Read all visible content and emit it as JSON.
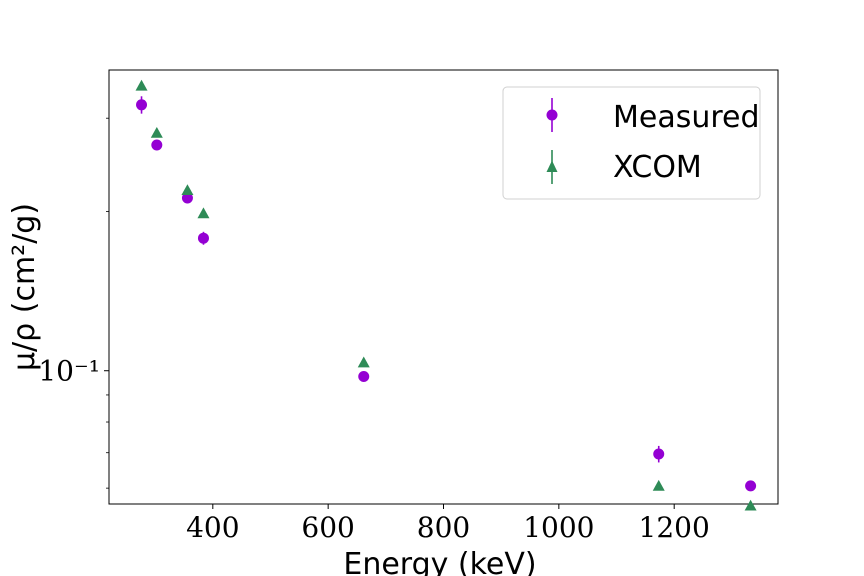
{
  "chart_data": {
    "type": "scatter",
    "title": "",
    "xlabel": "Energy (keV)",
    "ylabel": "μ/ρ (cm²/g)",
    "y_scale": "log",
    "xlim": [
      220,
      1380
    ],
    "ylim": [
      0.056,
      0.37
    ],
    "x_ticks": [
      400,
      600,
      800,
      1000,
      1200
    ],
    "y_major_ticks": [
      {
        "value": 0.1,
        "label": "10⁻¹"
      }
    ],
    "grid": false,
    "legend": "top-right",
    "series": [
      {
        "name": "Measured",
        "marker": "circle",
        "color": "#9400d3",
        "x": [
          276.4,
          302.9,
          356.0,
          383.8,
          661.7,
          1173.2,
          1332.5
        ],
        "y": [
          0.318,
          0.267,
          0.212,
          0.178,
          0.0975,
          0.0696,
          0.0606
        ],
        "yerr": [
          0.012,
          0.006,
          0.005,
          0.005,
          0.0015,
          0.0025,
          0.001
        ]
      },
      {
        "name": "XCOM",
        "marker": "triangle",
        "color": "#2e8b57",
        "x": [
          276.4,
          302.9,
          356.0,
          383.8,
          661.7,
          1173.2,
          1332.5
        ],
        "y": [
          0.345,
          0.281,
          0.219,
          0.198,
          0.1035,
          0.0605,
          0.0555
        ],
        "yerr": [
          0,
          0,
          0,
          0,
          0,
          0,
          0
        ]
      }
    ]
  }
}
